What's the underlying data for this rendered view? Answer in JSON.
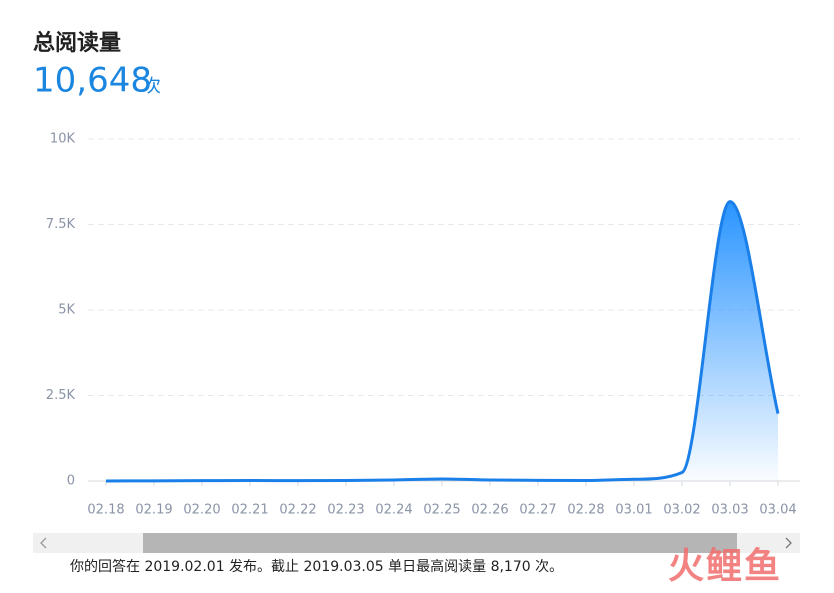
{
  "header": {
    "title": "总阅读量",
    "total": "10,648",
    "unit": "次"
  },
  "chart_data": {
    "type": "area",
    "categories": [
      "02.18",
      "02.19",
      "02.20",
      "02.21",
      "02.22",
      "02.23",
      "02.24",
      "02.25",
      "02.26",
      "02.27",
      "02.28",
      "03.01",
      "03.02",
      "03.03",
      "03.04"
    ],
    "values": [
      0,
      5,
      10,
      15,
      10,
      15,
      30,
      60,
      30,
      20,
      15,
      50,
      248,
      8170,
      1970
    ],
    "color": "#1a7fe8",
    "ylim": [
      0,
      10000
    ],
    "yticks": [
      0,
      {
        "value": 2500,
        "label": "2.5K"
      },
      {
        "value": 5000,
        "label": "5K"
      },
      {
        "value": 7500,
        "label": "7.5K"
      },
      {
        "value": 10000,
        "label": "10K"
      }
    ],
    "grid": true
  },
  "footer": {
    "note": "你的回答在 2019.02.01 发布。截止 2019.03.05 单日最高阅读量 8,170 次。",
    "watermark": "火鲤鱼"
  }
}
